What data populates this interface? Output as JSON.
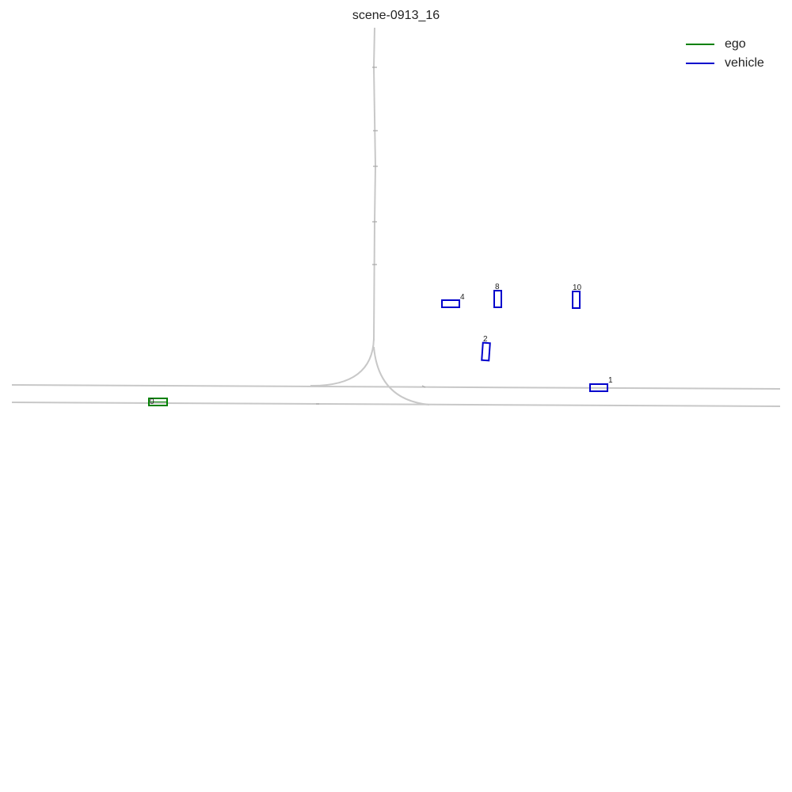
{
  "title": "scene-0913_16",
  "legend": [
    {
      "label": "ego",
      "color": "#008000"
    },
    {
      "label": "vehicle",
      "color": "#0000cc"
    }
  ],
  "agents": [
    {
      "id": "0",
      "type": "ego"
    },
    {
      "id": "1",
      "type": "vehicle"
    },
    {
      "id": "2",
      "type": "vehicle"
    },
    {
      "id": "4",
      "type": "vehicle"
    },
    {
      "id": "8",
      "type": "vehicle"
    },
    {
      "id": "10",
      "type": "vehicle"
    }
  ]
}
